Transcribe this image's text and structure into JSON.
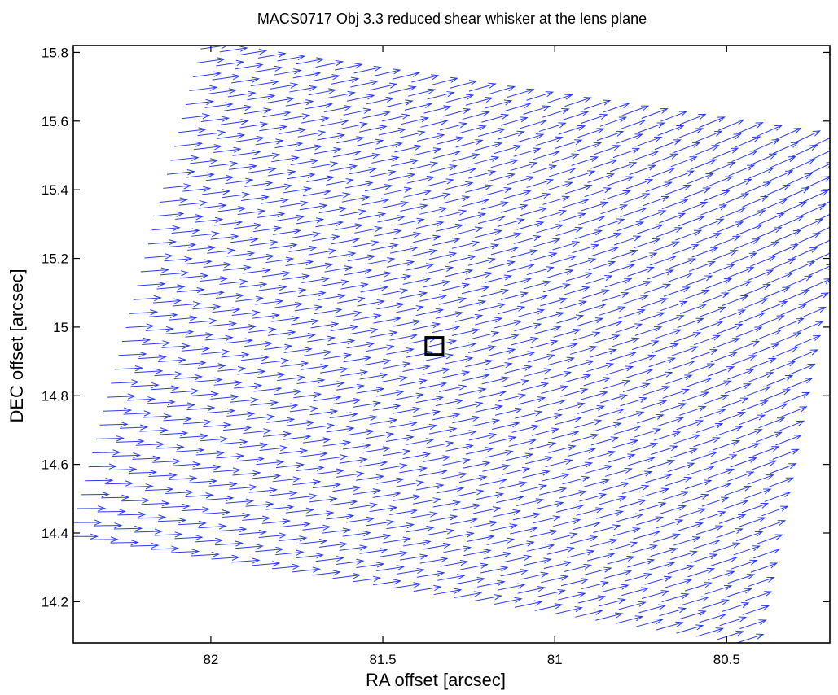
{
  "chart_data": {
    "type": "quiver",
    "title": "MACS0717 Obj 3.3 reduced shear whisker at the lens plane",
    "xlabel": "RA offset [arcsec]",
    "ylabel": "DEC offset [arcsec]",
    "xlim": [
      82.4,
      80.2
    ],
    "x_reversed": true,
    "ylim": [
      14.08,
      15.82
    ],
    "xticks": [
      {
        "value": 82,
        "label": "82"
      },
      {
        "value": 81.5,
        "label": "81.5"
      },
      {
        "value": 81,
        "label": "81"
      },
      {
        "value": 80.5,
        "label": "80.5"
      }
    ],
    "yticks": [
      {
        "value": 14.2,
        "label": "14.2"
      },
      {
        "value": 14.4,
        "label": "14.4"
      },
      {
        "value": 14.6,
        "label": "14.6"
      },
      {
        "value": 14.8,
        "label": "14.8"
      },
      {
        "value": 15,
        "label": "15"
      },
      {
        "value": 15.2,
        "label": "15.2"
      },
      {
        "value": 15.4,
        "label": "15.4"
      },
      {
        "value": 15.6,
        "label": "15.6"
      },
      {
        "value": 15.8,
        "label": "15.8"
      }
    ],
    "grid": false,
    "arrow_color": "#2b3df0",
    "whisker_field": {
      "corners": [
        {
          "ra": 82.03,
          "dec": 15.81
        },
        {
          "ra": 80.19,
          "dec": 15.52
        },
        {
          "ra": 80.47,
          "dec": 14.08
        },
        {
          "ra": 82.41,
          "dec": 14.39
        }
      ],
      "columns": 34,
      "rows": 36,
      "arrow_length_ra": 0.08,
      "angle_left_deg": 4,
      "angle_right_deg": 22,
      "angle_top_deg": 4,
      "angle_bottom_deg": -4
    },
    "marker": {
      "type": "square",
      "ra": 81.35,
      "dec": 14.945,
      "size_ra": 0.05,
      "size_dec": 0.05
    }
  }
}
